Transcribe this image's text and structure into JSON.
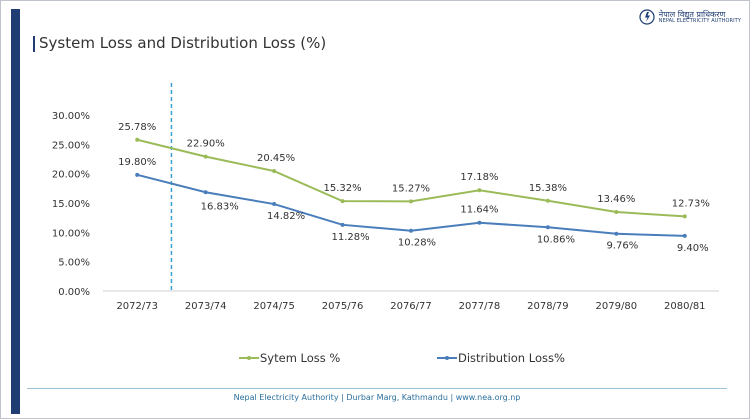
{
  "header": {
    "title": "System Loss and Distribution Loss (%)",
    "logo_line1": "नेपाल विद्युत प्राधिकरण",
    "logo_line2": "NEPAL ELECTRICITY AUTHORITY"
  },
  "footer": {
    "text": "Nepal Electricity Authority | Durbar Marg, Kathmandu | www.nea.org.np"
  },
  "chart_data": {
    "type": "line",
    "title": "System Loss and Distribution Loss (%)",
    "xlabel": "",
    "ylabel": "",
    "categories": [
      "2072/73",
      "2073/74",
      "2074/75",
      "2075/76",
      "2076/77",
      "2077/78",
      "2078/79",
      "2079/80",
      "2080/81"
    ],
    "ylim": [
      0,
      30
    ],
    "yticks": [
      0,
      5,
      10,
      15,
      20,
      25,
      30
    ],
    "ytick_labels": [
      "0.00%",
      "5.00%",
      "10.00%",
      "15.00%",
      "20.00%",
      "25.00%",
      "30.00%"
    ],
    "grid": false,
    "legend_position": "bottom",
    "series": [
      {
        "name": "Sytem Loss %",
        "color": "#9bbb59",
        "values": [
          25.78,
          22.9,
          20.45,
          15.32,
          15.27,
          17.18,
          15.38,
          13.46,
          12.73
        ],
        "labels": [
          "25.78%",
          "22.90%",
          "20.45%",
          "15.32%",
          "15.27%",
          "17.18%",
          "15.38%",
          "13.46%",
          "12.73%"
        ]
      },
      {
        "name": "Distribution Loss%",
        "color": "#4a7ebb",
        "values": [
          19.8,
          16.83,
          14.82,
          11.28,
          10.28,
          11.64,
          10.86,
          9.76,
          9.4
        ],
        "labels": [
          "19.80%",
          "16.83%",
          "14.82%",
          "11.28%",
          "10.28%",
          "11.64%",
          "10.86%",
          "9.76%",
          "9.40%"
        ]
      }
    ],
    "marker_line_after_category": "2072/73",
    "marker_line_color": "#3aa0d8"
  }
}
